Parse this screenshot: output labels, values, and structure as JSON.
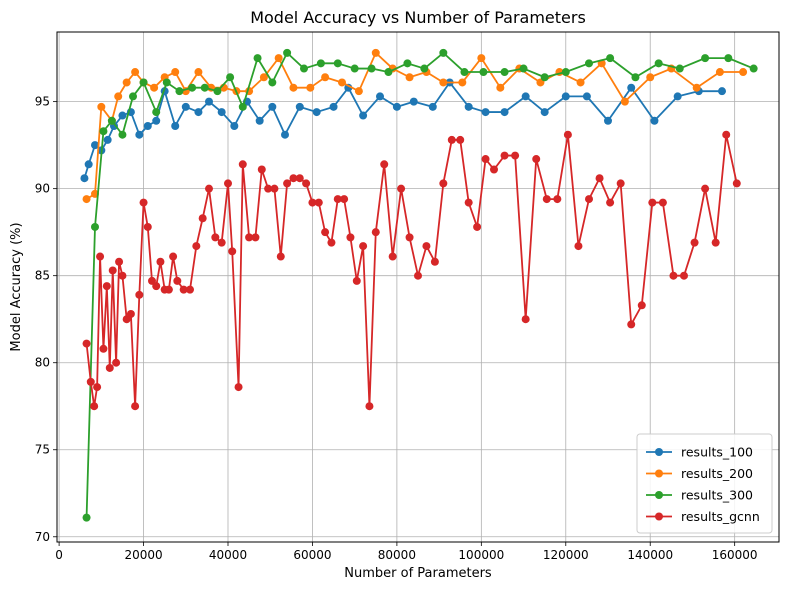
{
  "chart_data": {
    "type": "line",
    "title": "Model Accuracy vs Number of Parameters",
    "xlabel": "Number of Parameters",
    "ylabel": "Model Accuracy (%)",
    "xlim": [
      -500,
      170500
    ],
    "ylim": [
      69.7,
      99.0
    ],
    "xticks": [
      0,
      20000,
      40000,
      60000,
      80000,
      100000,
      120000,
      140000,
      160000
    ],
    "yticks": [
      70,
      75,
      80,
      85,
      90,
      95
    ],
    "grid": true,
    "legend_position": "bottom-right",
    "series": [
      {
        "name": "results_100",
        "color": "#1f77b4",
        "x": [
          6000,
          7000,
          8500,
          10000,
          11500,
          13000,
          15000,
          17000,
          19000,
          21000,
          23000,
          25000,
          27500,
          30000,
          33000,
          35500,
          38500,
          41500,
          44500,
          47500,
          50500,
          53500,
          57000,
          61000,
          65000,
          68500,
          72000,
          76000,
          80000,
          84000,
          88500,
          92500,
          97000,
          101000,
          105500,
          110500,
          115000,
          120000,
          125000,
          130000,
          135500,
          141000,
          146500,
          151500,
          157000
        ],
        "y": [
          90.6,
          91.4,
          92.5,
          92.2,
          92.8,
          93.6,
          94.2,
          94.4,
          93.1,
          93.6,
          93.9,
          95.6,
          93.6,
          94.7,
          94.4,
          95.0,
          94.4,
          93.6,
          95.0,
          93.9,
          94.7,
          93.1,
          94.7,
          94.4,
          94.7,
          95.8,
          94.2,
          95.3,
          94.7,
          95.0,
          94.7,
          96.1,
          94.7,
          94.4,
          94.4,
          95.3,
          94.4,
          95.3,
          95.3,
          93.9,
          95.8,
          93.9,
          95.3,
          95.6,
          95.6
        ]
      },
      {
        "name": "results_200",
        "color": "#ff7f0e",
        "x": [
          6500,
          8500,
          10000,
          12500,
          14000,
          16000,
          18000,
          20000,
          22500,
          25000,
          27500,
          30000,
          33000,
          36000,
          39000,
          42000,
          45000,
          48500,
          52000,
          55500,
          59500,
          63000,
          67000,
          71000,
          75000,
          79000,
          83000,
          87000,
          91000,
          95500,
          100000,
          104500,
          109000,
          114000,
          118500,
          123500,
          128500,
          134000,
          140000,
          145000,
          151000,
          156500,
          162000
        ],
        "y": [
          89.4,
          89.7,
          94.7,
          93.9,
          95.3,
          96.1,
          96.7,
          96.1,
          95.8,
          96.4,
          96.7,
          95.6,
          96.7,
          95.8,
          95.8,
          95.6,
          95.6,
          96.4,
          97.5,
          95.8,
          95.8,
          96.4,
          96.1,
          95.6,
          97.8,
          96.9,
          96.4,
          96.7,
          96.1,
          96.1,
          97.5,
          95.8,
          96.9,
          96.1,
          96.7,
          96.1,
          97.2,
          95.0,
          96.4,
          96.9,
          95.8,
          96.7,
          96.7
        ]
      },
      {
        "name": "results_300",
        "color": "#2ca02c",
        "x": [
          6500,
          8500,
          10500,
          12500,
          15000,
          17500,
          20000,
          23000,
          25500,
          28500,
          31500,
          34500,
          37500,
          40500,
          43500,
          47000,
          50500,
          54000,
          58000,
          62000,
          66000,
          70000,
          74000,
          78000,
          82500,
          86500,
          91000,
          96000,
          100500,
          105500,
          110000,
          115000,
          120000,
          125500,
          130500,
          136500,
          142000,
          147000,
          153000,
          158500,
          164500
        ],
        "y": [
          71.1,
          87.8,
          93.3,
          93.9,
          93.1,
          95.3,
          96.1,
          94.4,
          96.1,
          95.6,
          95.8,
          95.8,
          95.6,
          96.4,
          94.7,
          97.5,
          96.1,
          97.8,
          96.9,
          97.2,
          97.2,
          96.9,
          96.9,
          96.7,
          97.2,
          96.9,
          97.8,
          96.7,
          96.7,
          96.7,
          96.9,
          96.4,
          96.7,
          97.2,
          97.5,
          96.4,
          97.2,
          96.9,
          97.5,
          97.5,
          96.9
        ]
      },
      {
        "name": "results_gcnn",
        "color": "#d62728",
        "x": [
          6500,
          7500,
          8300,
          9000,
          9700,
          10500,
          11300,
          12000,
          12700,
          13500,
          14200,
          15000,
          16000,
          17000,
          18000,
          19000,
          20000,
          21000,
          22000,
          23000,
          24000,
          25000,
          26000,
          27000,
          28000,
          29500,
          31000,
          32500,
          34000,
          35500,
          37000,
          38500,
          40000,
          41000,
          42500,
          43500,
          45000,
          46500,
          48000,
          49500,
          51000,
          52500,
          54000,
          55500,
          57000,
          58500,
          60000,
          61500,
          63000,
          64500,
          66000,
          67500,
          69000,
          70500,
          72000,
          73500,
          75000,
          77000,
          79000,
          81000,
          83000,
          85000,
          87000,
          89000,
          91000,
          93000,
          95000,
          97000,
          99000,
          101000,
          103000,
          105500,
          108000,
          110500,
          113000,
          115500,
          118000,
          120500,
          123000,
          125500,
          128000,
          130500,
          133000,
          135500,
          138000,
          140500,
          143000,
          145500,
          148000,
          150500,
          153000,
          155500,
          158000,
          160500
        ],
        "y": [
          81.1,
          78.9,
          77.5,
          78.6,
          86.1,
          80.8,
          84.4,
          79.7,
          85.3,
          80.0,
          85.8,
          85.0,
          82.5,
          82.8,
          77.5,
          83.9,
          89.2,
          87.8,
          84.7,
          84.4,
          85.8,
          84.2,
          84.2,
          86.1,
          84.7,
          84.2,
          84.2,
          86.7,
          88.3,
          90.0,
          87.2,
          86.9,
          90.3,
          86.4,
          78.6,
          91.4,
          87.2,
          87.2,
          91.1,
          90.0,
          90.0,
          86.1,
          90.3,
          90.6,
          90.6,
          90.3,
          89.2,
          89.2,
          87.5,
          86.9,
          89.4,
          89.4,
          87.2,
          84.7,
          86.7,
          77.5,
          87.5,
          91.4,
          86.1,
          90.0,
          87.2,
          85.0,
          86.7,
          85.8,
          90.3,
          92.8,
          92.8,
          89.2,
          87.8,
          91.7,
          91.1,
          91.9,
          91.9,
          82.5,
          91.7,
          89.4,
          89.4,
          93.1,
          86.7,
          89.4,
          90.6,
          89.2,
          90.3,
          82.2,
          83.3,
          89.2,
          89.2,
          85.0,
          85.0,
          86.9,
          90.0,
          86.9,
          93.1,
          90.3
        ]
      }
    ]
  }
}
